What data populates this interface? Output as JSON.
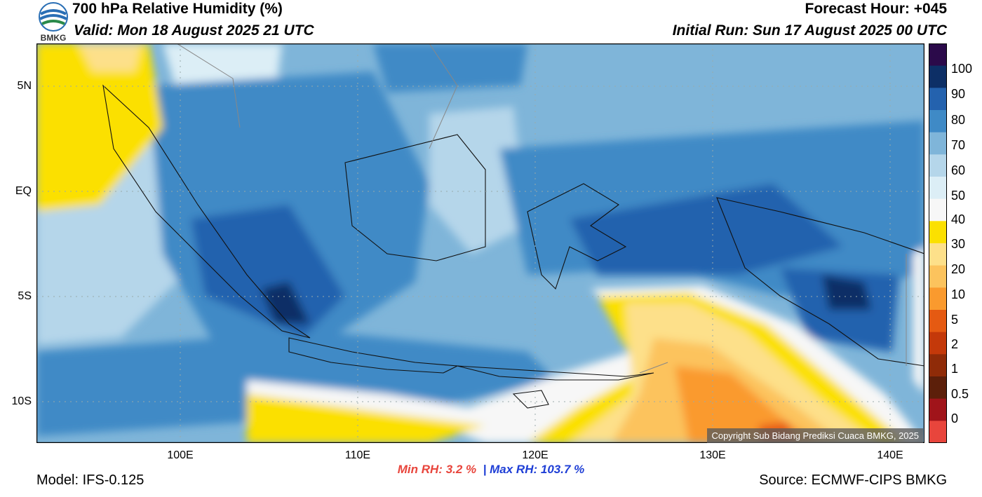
{
  "header": {
    "title": "700 hPa Relative Humidity (%)",
    "valid": "Valid: Mon 18 August 2025 21 UTC",
    "forecast_hour": "Forecast Hour: +045",
    "initial_run": "Initial Run: Sun 17 August 2025 00 UTC",
    "logo_text": "BMKG"
  },
  "map": {
    "variable": "Relative Humidity",
    "level": "700 hPa",
    "lat_labels": [
      "5N",
      "EQ",
      "5S",
      "10S"
    ],
    "lon_labels": [
      "100E",
      "110E",
      "120E",
      "130E",
      "140E"
    ],
    "gridlines": true,
    "copyright": "Copyright Sub Bidang Prediksi Cuaca BMKG, 2025"
  },
  "colorbar": {
    "labels": [
      "100",
      "90",
      "80",
      "70",
      "60",
      "50",
      "40",
      "30",
      "20",
      "10",
      "5",
      "2",
      "1",
      "0.5",
      "0"
    ],
    "colors": [
      "#2b0a4a",
      "#0d2f66",
      "#2462ae",
      "#3f8ac6",
      "#7fb5d9",
      "#b5d6ea",
      "#dceef6",
      "#f7f7f7",
      "#fbe000",
      "#fde08a",
      "#fcc35d",
      "#fa9a2e",
      "#e55a12",
      "#c4390a",
      "#8f2b08",
      "#5c1f0a",
      "#a0141a",
      "#e8453c"
    ]
  },
  "stats": {
    "min_label": "Min RH:",
    "min_value": "3.2 %",
    "separator": "|",
    "max_label": "Max RH:",
    "max_value": "103.7 %"
  },
  "footer": {
    "model": "Model: IFS-0.125",
    "source": "Source: ECMWF-CIPS BMKG"
  }
}
